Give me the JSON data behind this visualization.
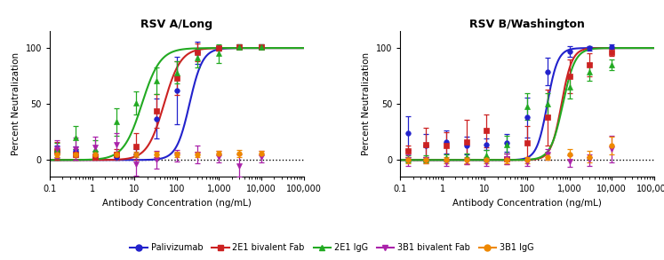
{
  "title_left": "RSV A/Long",
  "title_right": "RSV B/Washington",
  "xlabel": "Antibody Concentration (ng/mL)",
  "ylabel": "Percent Neutralization",
  "xlim_log": [
    -1,
    5
  ],
  "ylim": [
    -15,
    115
  ],
  "yticks": [
    0,
    50,
    100
  ],
  "colors": {
    "palivizumab": "#2222cc",
    "2e1_bivalent": "#cc2222",
    "2e1_igg": "#22aa22",
    "3b1_bivalent": "#aa22aa",
    "3b1_igg": "#ee8800"
  },
  "legend_labels": [
    "Palivizumab",
    "2E1 bivalent Fab",
    "2E1 IgG",
    "3B1 bivalent Fab",
    "3B1 IgG"
  ],
  "RSV_A": {
    "palivizumab": {
      "x": [
        0.15,
        0.4,
        1.2,
        3.7,
        11,
        33,
        100,
        300,
        1000,
        3000,
        10000
      ],
      "y": [
        8,
        8,
        5,
        3,
        5,
        37,
        62,
        96,
        100,
        101,
        101
      ],
      "yerr": [
        5,
        4,
        3,
        3,
        5,
        18,
        30,
        10,
        2,
        2,
        2
      ],
      "ec50": 200,
      "hill": 2.8
    },
    "2e1_bivalent": {
      "x": [
        0.15,
        0.4,
        1.2,
        3.7,
        11,
        33,
        100,
        300,
        1000,
        3000,
        10000
      ],
      "y": [
        8,
        5,
        3,
        5,
        12,
        44,
        73,
        96,
        100,
        101,
        101
      ],
      "yerr": [
        8,
        5,
        3,
        5,
        12,
        15,
        15,
        8,
        2,
        2,
        2
      ],
      "ec50": 50,
      "hill": 2.2
    },
    "2e1_igg": {
      "x": [
        0.15,
        0.4,
        1.2,
        3.7,
        11,
        33,
        100,
        300,
        1000,
        3000,
        10000
      ],
      "y": [
        10,
        20,
        10,
        34,
        51,
        71,
        78,
        91,
        95,
        101,
        101
      ],
      "yerr": [
        5,
        10,
        8,
        12,
        10,
        12,
        10,
        8,
        8,
        2,
        2
      ],
      "ec50": 15,
      "hill": 2.0
    },
    "3b1_bivalent": {
      "x": [
        0.15,
        0.4,
        1.2,
        3.7,
        11,
        33,
        100,
        300,
        1000,
        3000,
        10000
      ],
      "y": [
        10,
        10,
        11,
        14,
        -4,
        0,
        4,
        5,
        3,
        -5,
        3
      ],
      "yerr": [
        8,
        10,
        10,
        10,
        10,
        8,
        5,
        8,
        5,
        10,
        5
      ]
    },
    "3b1_igg": {
      "x": [
        0.15,
        0.4,
        1.2,
        3.7,
        11,
        33,
        100,
        300,
        1000,
        3000,
        10000
      ],
      "y": [
        5,
        5,
        5,
        5,
        5,
        5,
        5,
        5,
        6,
        6,
        6
      ],
      "yerr": [
        2,
        2,
        2,
        2,
        2,
        2,
        2,
        2,
        2,
        3,
        2
      ]
    }
  },
  "RSV_B": {
    "palivizumab": {
      "x": [
        0.15,
        0.4,
        1.2,
        3.7,
        11,
        33,
        100,
        300,
        1000,
        3000,
        10000
      ],
      "y": [
        24,
        13,
        16,
        13,
        14,
        15,
        38,
        79,
        97,
        100,
        101
      ],
      "yerr": [
        15,
        10,
        10,
        8,
        5,
        8,
        18,
        12,
        5,
        2,
        2
      ],
      "ec50": 300,
      "hill": 3.5
    },
    "2e1_bivalent": {
      "x": [
        0.15,
        0.4,
        1.2,
        3.7,
        11,
        33,
        100,
        300,
        1000,
        3000,
        10000
      ],
      "y": [
        8,
        14,
        13,
        16,
        26,
        1,
        15,
        38,
        75,
        85,
        96
      ],
      "yerr": [
        5,
        15,
        12,
        20,
        15,
        5,
        15,
        25,
        15,
        10,
        3
      ],
      "ec50": 650,
      "hill": 3.5
    },
    "2e1_igg": {
      "x": [
        0.15,
        0.4,
        1.2,
        3.7,
        11,
        33,
        100,
        300,
        1000,
        3000,
        10000
      ],
      "y": [
        1,
        1,
        2,
        3,
        4,
        14,
        48,
        50,
        65,
        79,
        85
      ],
      "yerr": [
        3,
        3,
        3,
        3,
        5,
        8,
        12,
        10,
        10,
        8,
        5
      ],
      "ec50": 700,
      "hill": 3.0
    },
    "3b1_bivalent": {
      "x": [
        0.15,
        0.4,
        1.2,
        3.7,
        11,
        33,
        100,
        300,
        1000,
        3000,
        10000
      ],
      "y": [
        0,
        0,
        -2,
        -1,
        -2,
        1,
        -2,
        5,
        -1,
        0,
        10
      ],
      "yerr": [
        5,
        3,
        3,
        3,
        3,
        5,
        3,
        5,
        5,
        5,
        12
      ]
    },
    "3b1_igg": {
      "x": [
        0.15,
        0.4,
        1.2,
        3.7,
        11,
        33,
        100,
        300,
        1000,
        3000,
        10000
      ],
      "y": [
        0,
        0,
        0,
        0,
        0,
        0,
        0,
        3,
        5,
        3,
        13
      ],
      "yerr": [
        3,
        3,
        3,
        3,
        3,
        3,
        3,
        3,
        5,
        5,
        8
      ]
    }
  }
}
